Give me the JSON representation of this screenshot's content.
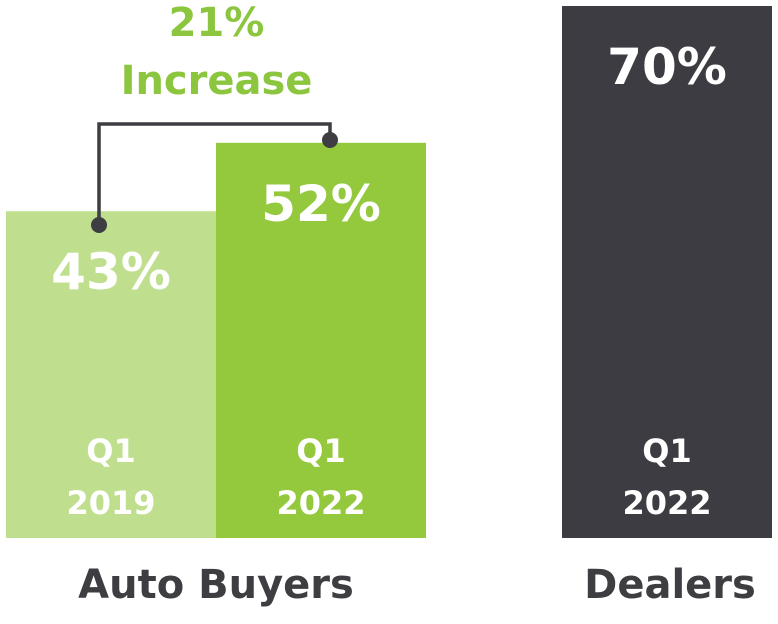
{
  "chart_data": {
    "type": "bar",
    "ylim": [
      0,
      70
    ],
    "grid": false,
    "legend": "none",
    "groups": [
      {
        "label": "Auto Buyers",
        "bars": [
          {
            "value": 43,
            "value_label": "43%",
            "period_line1": "Q1",
            "period_line2": "2019",
            "color": "#bfdf8e"
          },
          {
            "value": 52,
            "value_label": "52%",
            "period_line1": "Q1",
            "period_line2": "2022",
            "color": "#94c83d"
          }
        ]
      },
      {
        "label": "Dealers",
        "bars": [
          {
            "value": 70,
            "value_label": "70%",
            "period_line1": "Q1",
            "period_line2": "2022",
            "color": "#3d3c42"
          }
        ]
      }
    ],
    "annotation": {
      "line1": "21%",
      "line2": "Increase",
      "color": "#8cc63f",
      "bracket_color": "#3d3d42"
    }
  }
}
